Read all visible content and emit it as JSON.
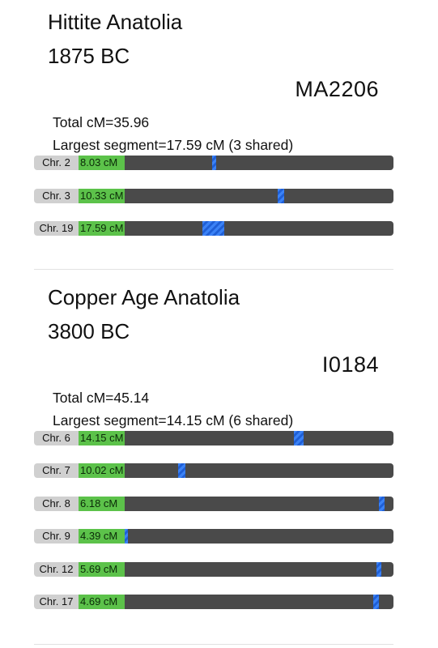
{
  "sections": [
    {
      "title": "Hittite Anatolia",
      "date": "1875 BC",
      "sample": "MA2206",
      "total": "Total cM=35.96",
      "largest": "Largest segment=17.59 cM (3 shared)",
      "rows": [
        {
          "chr": "Chr. 2",
          "cm": "8.03 cM",
          "seg_start": 0.325,
          "seg_width": 0.016
        },
        {
          "chr": "Chr. 3",
          "cm": "10.33 cM",
          "seg_start": 0.57,
          "seg_width": 0.022
        },
        {
          "chr": "Chr. 19",
          "cm": "17.59 cM",
          "seg_start": 0.29,
          "seg_width": 0.08
        }
      ]
    },
    {
      "title": "Copper Age Anatolia",
      "date": "3800 BC",
      "sample": "I0184",
      "total": "Total cM=45.14",
      "largest": "Largest segment=14.15 cM (6 shared)",
      "rows": [
        {
          "chr": "Chr. 6",
          "cm": "14.15 cM",
          "seg_start": 0.63,
          "seg_width": 0.036
        },
        {
          "chr": "Chr. 7",
          "cm": "10.02 cM",
          "seg_start": 0.2,
          "seg_width": 0.025
        },
        {
          "chr": "Chr. 8",
          "cm": "6.18 cM",
          "seg_start": 0.946,
          "seg_width": 0.02
        },
        {
          "chr": "Chr. 9",
          "cm": "4.39 cM",
          "seg_start": 0.0,
          "seg_width": 0.012
        },
        {
          "chr": "Chr. 12",
          "cm": "5.69 cM",
          "seg_start": 0.938,
          "seg_width": 0.018
        },
        {
          "chr": "Chr. 17",
          "cm": "4.69 cM",
          "seg_start": 0.925,
          "seg_width": 0.02
        }
      ]
    }
  ],
  "colors": {
    "label_bg": "#d0d0d0",
    "cm_bg": "#5cc24a",
    "track_bg": "#4a4a4a",
    "segment": "#3b82f6"
  }
}
